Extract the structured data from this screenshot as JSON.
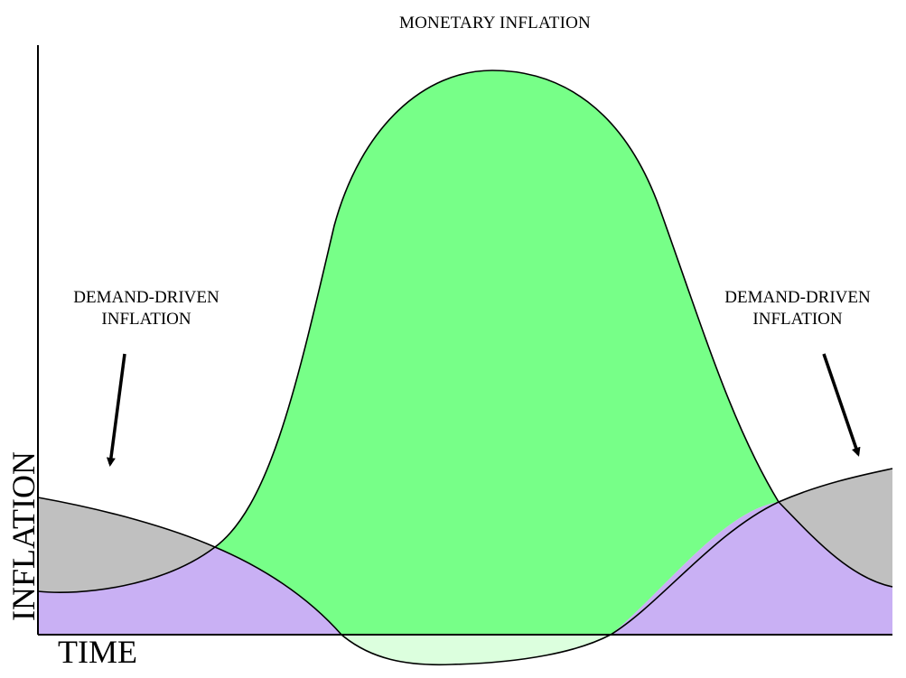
{
  "title": "MONETARY INFLATION",
  "annotations": {
    "left": {
      "line1": "DEMAND-DRIVEN",
      "line2": "INFLATION"
    },
    "right": {
      "line1": "DEMAND-DRIVEN",
      "line2": "INFLATION"
    }
  },
  "axes": {
    "x_label": "TIME",
    "y_label": "INFLATION"
  },
  "colors": {
    "monetary_fill": "#77ff88",
    "monetary_below_axis": "#dcffde",
    "demand_gray": "#c0c0c0",
    "purple": "#c9b0f4",
    "stroke": "#000000"
  }
}
